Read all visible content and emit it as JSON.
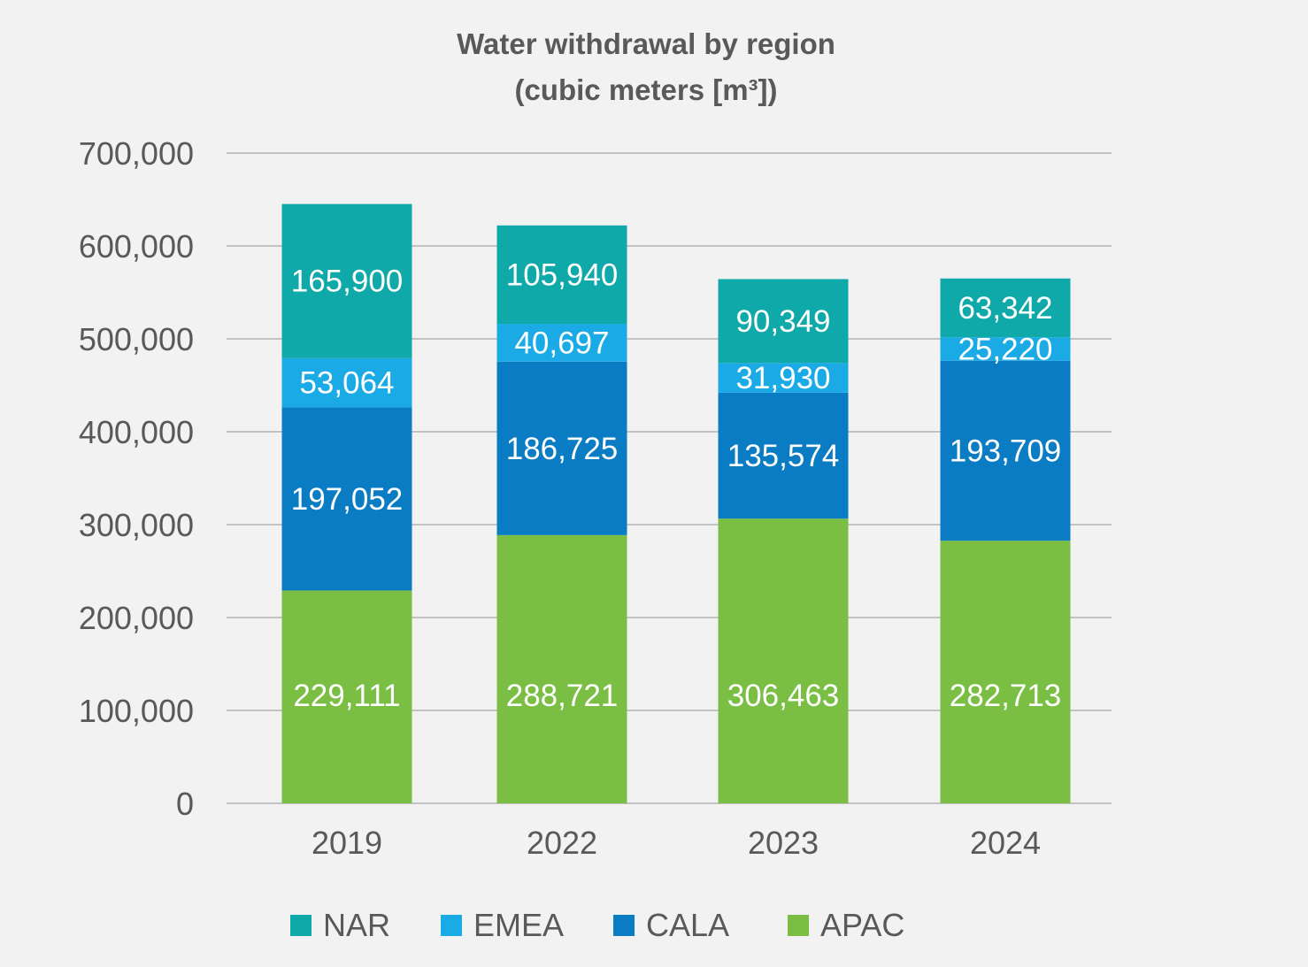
{
  "chart_data": {
    "type": "bar",
    "stacked": true,
    "title": "Water withdrawal by region",
    "subtitle": "(cubic meters [m³])",
    "xlabel": "",
    "ylabel": "",
    "ylim": [
      0,
      700000
    ],
    "yticks": [
      0,
      100000,
      200000,
      300000,
      400000,
      500000,
      600000,
      700000
    ],
    "ytick_labels": [
      "0",
      "100,000",
      "200,000",
      "300,000",
      "400,000",
      "500,000",
      "600,000",
      "700,000"
    ],
    "grid": true,
    "legend_position": "bottom",
    "categories": [
      "2019",
      "2022",
      "2023",
      "2024"
    ],
    "series": [
      {
        "name": "APAC",
        "color": "#7abf43",
        "values": [
          229111,
          288721,
          306463,
          282713
        ],
        "labels": [
          "229,111",
          "288,721",
          "306,463",
          "282,713"
        ]
      },
      {
        "name": "CALA",
        "color": "#0a7cc4",
        "values": [
          197052,
          186725,
          135574,
          193709
        ],
        "labels": [
          "197,052",
          "186,725",
          "135,574",
          "193,709"
        ]
      },
      {
        "name": "EMEA",
        "color": "#1aabe6",
        "values": [
          53064,
          40697,
          31930,
          25220
        ],
        "labels": [
          "53,064",
          "40,697",
          "31,930",
          "25,220"
        ]
      },
      {
        "name": "NAR",
        "color": "#0ea9a8",
        "values": [
          165900,
          105940,
          90349,
          63342
        ],
        "labels": [
          "165,900",
          "105,940",
          "90,349",
          "63,342"
        ]
      }
    ],
    "legend_order": [
      "NAR",
      "EMEA",
      "CALA",
      "APAC"
    ]
  }
}
